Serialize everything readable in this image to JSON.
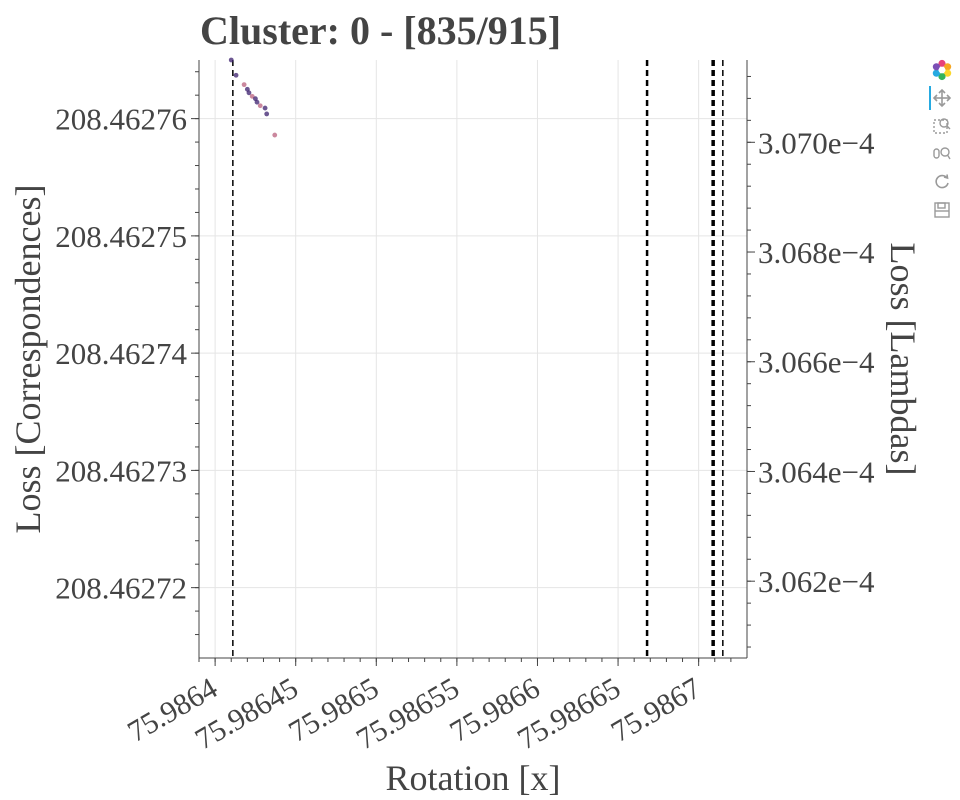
{
  "chart_data": {
    "type": "scatter",
    "title": "Cluster: 0 - [835/915]",
    "xlabel": "Rotation [x]",
    "ylabel": "Loss [Correspondences]",
    "y2label": "Loss [Lambdas]",
    "xlim": [
      75.98639,
      75.98673
    ],
    "ylim": [
      208.462714,
      208.462765
    ],
    "y2lim": [
      0.00030606,
      0.00030715
    ],
    "x_ticks": [
      "75.9864",
      "75.98645",
      "75.9865",
      "75.98655",
      "75.9866",
      "75.98665",
      "75.9867"
    ],
    "x_tick_values": [
      75.9864,
      75.98645,
      75.9865,
      75.98655,
      75.9866,
      75.98665,
      75.9867
    ],
    "y_ticks": [
      "208.46272",
      "208.46273",
      "208.46274",
      "208.46275",
      "208.46276"
    ],
    "y_tick_values": [
      208.46272,
      208.46273,
      208.46274,
      208.46275,
      208.46276
    ],
    "y2_ticks": [
      "3.062e−4",
      "3.064e−4",
      "3.066e−4",
      "3.068e−4",
      "3.070e−4"
    ],
    "y2_tick_values": [
      0.0003062,
      0.0003064,
      0.0003066,
      0.0003068,
      0.000307
    ],
    "grid": true,
    "series": [
      {
        "color": "#3b1f6e",
        "points": [
          [
            75.98641,
            208.462765
          ],
          [
            75.986413,
            208.4627637
          ],
          [
            75.986418,
            208.4627629
          ],
          [
            75.98642,
            208.4627625
          ],
          [
            75.986421,
            208.4627622
          ],
          [
            75.986423,
            208.4627619
          ],
          [
            75.986425,
            208.4627617
          ],
          [
            75.986426,
            208.4627614
          ],
          [
            75.986428,
            208.4627611
          ],
          [
            75.986431,
            208.4627609
          ],
          [
            75.986432,
            208.4627604
          ],
          [
            75.986437,
            208.4627586
          ]
        ]
      }
    ],
    "vertical_lines": [
      {
        "x": 75.986411,
        "style": "dashed",
        "width": 1.5
      },
      {
        "x": 75.986668,
        "style": "dashed",
        "width": 2.5
      },
      {
        "x": 75.986709,
        "style": "dashed",
        "width": 3.5
      },
      {
        "x": 75.986715,
        "style": "dashed",
        "width": 1.5
      }
    ]
  },
  "toolbar": {
    "tools": [
      "bokeh-logo-icon",
      "pan-icon",
      "box-zoom-icon",
      "wheel-zoom-icon",
      "reset-icon",
      "save-icon"
    ]
  }
}
